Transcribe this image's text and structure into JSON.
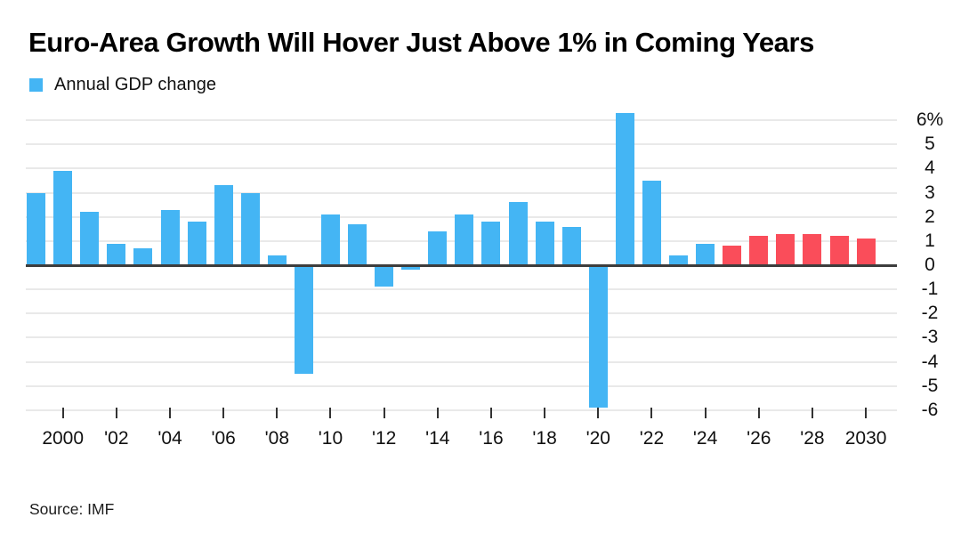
{
  "header": {
    "title": "Euro-Area Growth Will Hover Just Above 1% in Coming Years"
  },
  "legend": {
    "label": "Annual GDP change",
    "swatch_color": "#44b5f4"
  },
  "source": {
    "text": "Source: IMF"
  },
  "chart_data": {
    "type": "bar",
    "title": "Euro-Area Growth Will Hover Just Above 1% in Coming Years",
    "series_name": "Annual GDP change",
    "unit": "%",
    "x": [
      1999,
      2000,
      2001,
      2002,
      2003,
      2004,
      2005,
      2006,
      2007,
      2008,
      2009,
      2010,
      2011,
      2012,
      2013,
      2014,
      2015,
      2016,
      2017,
      2018,
      2019,
      2020,
      2021,
      2022,
      2023,
      2024,
      2025,
      2026,
      2027,
      2028,
      2029,
      2030
    ],
    "values": [
      3.0,
      3.9,
      2.2,
      0.9,
      0.7,
      2.3,
      1.8,
      3.3,
      3.0,
      0.4,
      -4.5,
      2.1,
      1.7,
      -0.9,
      -0.2,
      1.4,
      2.1,
      1.8,
      2.6,
      1.8,
      1.6,
      -5.9,
      6.3,
      3.5,
      0.4,
      0.9,
      0.8,
      1.2,
      1.3,
      1.3,
      1.2,
      1.1
    ],
    "forecast_start_year": 2025,
    "colors": {
      "actual": "#44b5f4",
      "forecast": "#fa4d5a",
      "gridline": "#e9e9e9",
      "zero_line": "#3d3d3d"
    },
    "ylim": [
      -6,
      6
    ],
    "grid": true,
    "legend_position": "top-left",
    "y_axis_side": "right",
    "y_ticks": [
      {
        "value": 6,
        "label": "6%"
      },
      {
        "value": 5,
        "label": "5"
      },
      {
        "value": 4,
        "label": "4"
      },
      {
        "value": 3,
        "label": "3"
      },
      {
        "value": 2,
        "label": "2"
      },
      {
        "value": 1,
        "label": "1"
      },
      {
        "value": 0,
        "label": "0"
      },
      {
        "value": -1,
        "label": "-1"
      },
      {
        "value": -2,
        "label": "-2"
      },
      {
        "value": -3,
        "label": "-3"
      },
      {
        "value": -4,
        "label": "-4"
      },
      {
        "value": -5,
        "label": "-5"
      },
      {
        "value": -6,
        "label": "-6"
      }
    ],
    "x_ticks": [
      {
        "year": 2000,
        "label": "2000"
      },
      {
        "year": 2002,
        "label": "'02"
      },
      {
        "year": 2004,
        "label": "'04"
      },
      {
        "year": 2006,
        "label": "'06"
      },
      {
        "year": 2008,
        "label": "'08"
      },
      {
        "year": 2010,
        "label": "'10"
      },
      {
        "year": 2012,
        "label": "'12"
      },
      {
        "year": 2014,
        "label": "'14"
      },
      {
        "year": 2016,
        "label": "'16"
      },
      {
        "year": 2018,
        "label": "'18"
      },
      {
        "year": 2020,
        "label": "'20"
      },
      {
        "year": 2022,
        "label": "'22"
      },
      {
        "year": 2024,
        "label": "'24"
      },
      {
        "year": 2026,
        "label": "'26"
      },
      {
        "year": 2028,
        "label": "'28"
      },
      {
        "year": 2030,
        "label": "2030"
      }
    ]
  }
}
